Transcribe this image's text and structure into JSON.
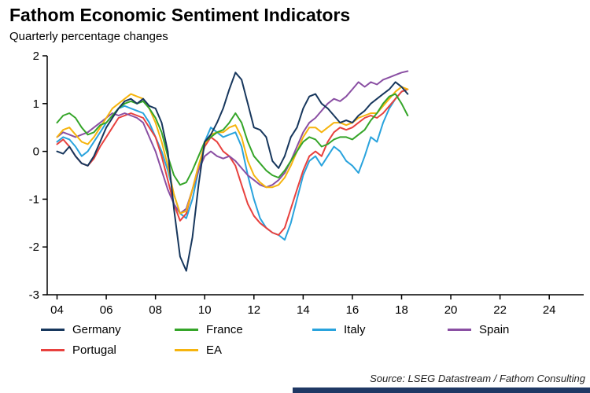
{
  "chart_data": {
    "type": "line",
    "title": "Fathom Economic Sentiment Indicators",
    "subtitle": "Quarterly percentage changes",
    "source": "Source: LSEG Datastream / Fathom Consulting",
    "grid": false,
    "legend_position": "bottom",
    "axis_color": "#000000",
    "accent_bar_color": "#1f3864",
    "x_start": 2004.0,
    "x_step": 0.25,
    "x_axis": {
      "min": 2003.6,
      "max": 2025.4,
      "ticks": [
        2004,
        2006,
        2008,
        2010,
        2012,
        2014,
        2016,
        2018,
        2020,
        2022,
        2024
      ],
      "tick_labels": [
        "04",
        "06",
        "08",
        "10",
        "12",
        "14",
        "16",
        "18",
        "20",
        "22",
        "24"
      ]
    },
    "y_axis": {
      "min": -3,
      "max": 2,
      "ticks": [
        2,
        1,
        0,
        -1,
        -2,
        -3
      ],
      "tick_labels": [
        "2",
        "1",
        "0",
        "-1",
        "-2",
        "-3"
      ]
    },
    "draw_order": [
      2,
      4,
      3,
      5,
      1,
      0
    ],
    "series": [
      {
        "name": "Germany",
        "color": "#17375d",
        "values": [
          0.0,
          -0.05,
          0.1,
          -0.1,
          -0.25,
          -0.3,
          -0.1,
          0.2,
          0.5,
          0.7,
          0.9,
          1.05,
          1.1,
          1.0,
          1.1,
          0.95,
          0.9,
          0.6,
          0.0,
          -1.2,
          -2.2,
          -2.5,
          -1.8,
          -0.7,
          0.2,
          0.35,
          0.6,
          0.9,
          1.3,
          1.65,
          1.5,
          1.0,
          0.5,
          0.45,
          0.3,
          -0.2,
          -0.35,
          -0.1,
          0.3,
          0.5,
          0.9,
          1.15,
          1.2,
          1.0,
          0.9,
          0.75,
          0.6,
          0.65,
          0.6,
          0.75,
          0.85,
          1.0,
          1.1,
          1.2,
          1.3,
          1.45,
          1.35,
          1.2
        ]
      },
      {
        "name": "France",
        "color": "#35a529",
        "values": [
          0.6,
          0.75,
          0.8,
          0.7,
          0.5,
          0.35,
          0.4,
          0.55,
          0.6,
          0.75,
          0.9,
          1.0,
          1.05,
          1.0,
          1.05,
          0.9,
          0.7,
          0.4,
          -0.1,
          -0.5,
          -0.7,
          -0.65,
          -0.4,
          -0.1,
          0.2,
          0.3,
          0.4,
          0.45,
          0.6,
          0.8,
          0.6,
          0.2,
          -0.1,
          -0.25,
          -0.4,
          -0.5,
          -0.55,
          -0.4,
          -0.2,
          0.0,
          0.2,
          0.3,
          0.25,
          0.1,
          0.15,
          0.25,
          0.3,
          0.3,
          0.25,
          0.35,
          0.45,
          0.65,
          0.8,
          1.0,
          1.15,
          1.2,
          1.0,
          0.75
        ]
      },
      {
        "name": "Italy",
        "color": "#29a3dd",
        "values": [
          0.2,
          0.3,
          0.25,
          0.1,
          -0.1,
          0.0,
          0.2,
          0.4,
          0.6,
          0.75,
          0.9,
          0.95,
          0.9,
          0.85,
          0.8,
          0.6,
          0.3,
          0.0,
          -0.4,
          -0.9,
          -1.3,
          -1.4,
          -1.0,
          -0.4,
          0.2,
          0.5,
          0.4,
          0.3,
          0.35,
          0.4,
          0.1,
          -0.5,
          -1.0,
          -1.4,
          -1.6,
          -1.7,
          -1.75,
          -1.85,
          -1.5,
          -1.0,
          -0.5,
          -0.2,
          -0.1,
          -0.3,
          -0.1,
          0.1,
          0.0,
          -0.2,
          -0.3,
          -0.45,
          -0.1,
          0.3,
          0.2,
          0.6,
          0.9,
          1.1,
          1.25,
          1.3
        ]
      },
      {
        "name": "Spain",
        "color": "#8a4fa3",
        "values": [
          0.3,
          0.4,
          0.35,
          0.3,
          0.35,
          0.4,
          0.5,
          0.6,
          0.7,
          0.8,
          0.75,
          0.8,
          0.75,
          0.7,
          0.6,
          0.3,
          0.0,
          -0.4,
          -0.8,
          -1.1,
          -1.3,
          -1.2,
          -0.8,
          -0.4,
          -0.1,
          0.0,
          -0.1,
          -0.15,
          -0.1,
          -0.2,
          -0.35,
          -0.5,
          -0.6,
          -0.7,
          -0.75,
          -0.7,
          -0.6,
          -0.45,
          -0.2,
          0.1,
          0.4,
          0.6,
          0.7,
          0.85,
          1.0,
          1.1,
          1.05,
          1.15,
          1.3,
          1.45,
          1.35,
          1.45,
          1.4,
          1.5,
          1.55,
          1.6,
          1.65,
          1.68
        ]
      },
      {
        "name": "Portugal",
        "color": "#e8413e",
        "values": [
          0.15,
          0.25,
          0.1,
          -0.1,
          -0.25,
          -0.3,
          -0.15,
          0.1,
          0.3,
          0.5,
          0.7,
          0.75,
          0.8,
          0.75,
          0.7,
          0.5,
          0.3,
          -0.1,
          -0.6,
          -1.1,
          -1.45,
          -1.3,
          -0.8,
          -0.3,
          0.1,
          0.3,
          0.2,
          0.0,
          -0.1,
          -0.3,
          -0.7,
          -1.1,
          -1.35,
          -1.5,
          -1.6,
          -1.7,
          -1.75,
          -1.6,
          -1.2,
          -0.8,
          -0.4,
          -0.1,
          0.0,
          -0.1,
          0.2,
          0.4,
          0.5,
          0.45,
          0.5,
          0.6,
          0.7,
          0.75,
          0.7,
          0.8,
          0.95,
          1.1,
          1.25,
          1.3
        ]
      },
      {
        "name": "EA",
        "color": "#f6b40e",
        "values": [
          0.3,
          0.45,
          0.5,
          0.35,
          0.2,
          0.15,
          0.3,
          0.5,
          0.7,
          0.9,
          1.0,
          1.1,
          1.2,
          1.15,
          1.1,
          0.9,
          0.6,
          0.2,
          -0.3,
          -0.9,
          -1.3,
          -1.25,
          -0.8,
          -0.3,
          0.15,
          0.35,
          0.4,
          0.4,
          0.5,
          0.55,
          0.3,
          -0.2,
          -0.5,
          -0.65,
          -0.75,
          -0.75,
          -0.7,
          -0.55,
          -0.3,
          0.0,
          0.3,
          0.5,
          0.5,
          0.4,
          0.5,
          0.6,
          0.6,
          0.55,
          0.6,
          0.7,
          0.75,
          0.8,
          0.8,
          0.95,
          1.1,
          1.25,
          1.35,
          1.3
        ]
      }
    ]
  }
}
